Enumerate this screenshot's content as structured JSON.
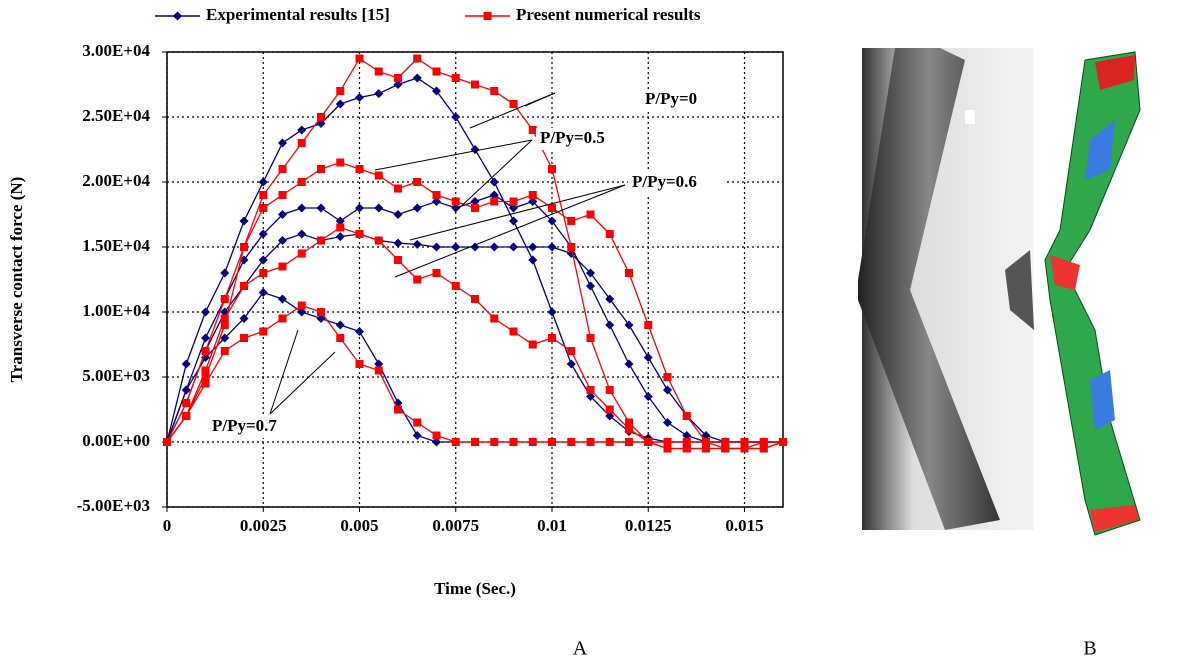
{
  "chart_data": {
    "type": "line",
    "x": [
      0,
      0.0005,
      0.001,
      0.0015,
      0.002,
      0.0025,
      0.003,
      0.0035,
      0.004,
      0.0045,
      0.005,
      0.0055,
      0.006,
      0.0065,
      0.007,
      0.0075,
      0.008,
      0.0085,
      0.009,
      0.0095,
      0.01,
      0.0105,
      0.011,
      0.0115,
      0.012,
      0.0125,
      0.013,
      0.0135,
      0.014,
      0.0145,
      0.015,
      0.0155,
      0.016
    ],
    "xlabel": "Time (Sec.)",
    "ylabel": "Transverse contact force (N)",
    "xlim": [
      0,
      0.016
    ],
    "xticks": [
      0,
      0.0025,
      0.005,
      0.0075,
      0.01,
      0.0125,
      0.015
    ],
    "ylim": [
      -5000,
      30000
    ],
    "yticks": [
      {
        "value": -5000,
        "label": "-5.00E+03"
      },
      {
        "value": 0,
        "label": "0.00E+00"
      },
      {
        "value": 5000,
        "label": "5.00E+03"
      },
      {
        "value": 10000,
        "label": "1.00E+04"
      },
      {
        "value": 15000,
        "label": "1.50E+04"
      },
      {
        "value": 20000,
        "label": "2.00E+04"
      },
      {
        "value": 25000,
        "label": "2.50E+04"
      },
      {
        "value": 30000,
        "label": "3.00E+04"
      }
    ],
    "grid": true,
    "series": [
      {
        "name": "Experimental results [15]",
        "color": "#000080",
        "marker": "diamond",
        "curves": [
          [
            0,
            6000,
            10000,
            13000,
            17000,
            20000,
            23000,
            24000,
            24500,
            26000,
            26500,
            26800,
            27500,
            28000,
            27000,
            25000,
            22500,
            20000,
            17000,
            14000,
            10000,
            6000,
            3500,
            2000,
            800,
            300,
            0,
            0,
            0,
            0,
            0,
            0,
            0
          ],
          [
            0,
            4000,
            8000,
            11000,
            14000,
            16000,
            17500,
            18000,
            18000,
            17000,
            18000,
            18000,
            17500,
            18000,
            18500,
            18000,
            18500,
            19000,
            18000,
            18500,
            17000,
            15000,
            12000,
            9000,
            6000,
            3500,
            1500,
            500,
            0,
            0,
            0,
            0,
            0
          ],
          [
            0,
            3000,
            7000,
            10000,
            12000,
            14000,
            15500,
            16000,
            15500,
            15800,
            16000,
            15500,
            15300,
            15200,
            15000,
            15000,
            15000,
            15000,
            15000,
            15000,
            15000,
            14500,
            13000,
            11000,
            9000,
            6500,
            4000,
            2000,
            500,
            0,
            0,
            0,
            0
          ],
          [
            0,
            4000,
            6500,
            8000,
            9500,
            11500,
            11000,
            10000,
            9500,
            9000,
            8500,
            6000,
            3000,
            500,
            0,
            0,
            0,
            0,
            0,
            0,
            0,
            0,
            0,
            0,
            0,
            0,
            0,
            0,
            0,
            0,
            0,
            0,
            0
          ]
        ]
      },
      {
        "name": "Present numerical results",
        "color": "#ff0000",
        "marker": "square",
        "curves": [
          [
            0,
            3000,
            7000,
            11000,
            15000,
            19000,
            21000,
            23000,
            25000,
            27000,
            29500,
            28500,
            28000,
            29500,
            28500,
            28000,
            27500,
            27000,
            26000,
            24000,
            21000,
            15000,
            8000,
            4000,
            1500,
            0,
            -500,
            -500,
            -500,
            -500,
            -500,
            -500,
            0
          ],
          [
            0,
            2000,
            5000,
            9000,
            15000,
            18000,
            19000,
            20000,
            21000,
            21500,
            21000,
            20500,
            19500,
            20000,
            19000,
            18500,
            18000,
            18500,
            18500,
            19000,
            18000,
            17000,
            17500,
            16000,
            13000,
            9000,
            5000,
            2000,
            0,
            -500,
            -500,
            -500,
            0
          ],
          [
            0,
            2000,
            5500,
            9500,
            12000,
            13000,
            13500,
            14500,
            15500,
            16500,
            16000,
            15500,
            14000,
            12500,
            13000,
            12000,
            11000,
            9500,
            8500,
            7500,
            8000,
            7000,
            4000,
            2500,
            1000,
            0,
            -500,
            -500,
            -500,
            -500,
            -500,
            0,
            0
          ],
          [
            0,
            2000,
            4500,
            7000,
            8000,
            8500,
            9500,
            10500,
            10000,
            8000,
            6000,
            5500,
            2500,
            1500,
            500,
            0,
            0,
            0,
            0,
            0,
            0,
            0,
            0,
            0,
            0,
            0,
            0,
            0,
            0,
            0,
            0,
            0,
            0
          ]
        ]
      }
    ],
    "annotations": [
      "P/Py=0",
      "P/Py=0.5",
      "P/Py=0.6",
      "P/Py=0.7"
    ],
    "panel_labels": [
      "A",
      "B"
    ]
  }
}
